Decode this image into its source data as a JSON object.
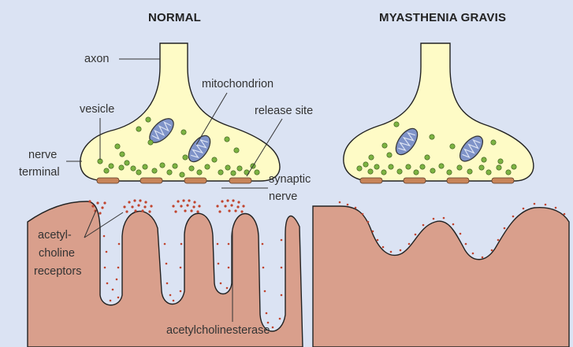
{
  "panels": {
    "normal_title": "NORMAL",
    "mg_title": "MYASTHENIA GRAVIS"
  },
  "labels": {
    "axon": "axon",
    "mitochondrion": "mitochondrion",
    "vesicle": "vesicle",
    "release_site": "release site",
    "nerve_terminal_1": "nerve",
    "nerve_terminal_2": "terminal",
    "synaptic_1": "synaptic",
    "synaptic_2": "nerve",
    "receptors_1": "acetyl-",
    "receptors_2": "choline",
    "receptors_3": "receptors",
    "acetylcholinesterase": "acetylcholinesterase"
  },
  "colors": {
    "background": "#dbe3f3",
    "nerve_fill": "#fefbc6",
    "muscle_fill": "#d99f8c",
    "vesicle": "#7cb342",
    "mitochondrion": "#7f93c8",
    "release_site": "#c8855a",
    "receptor_dot": "#c0442e"
  }
}
